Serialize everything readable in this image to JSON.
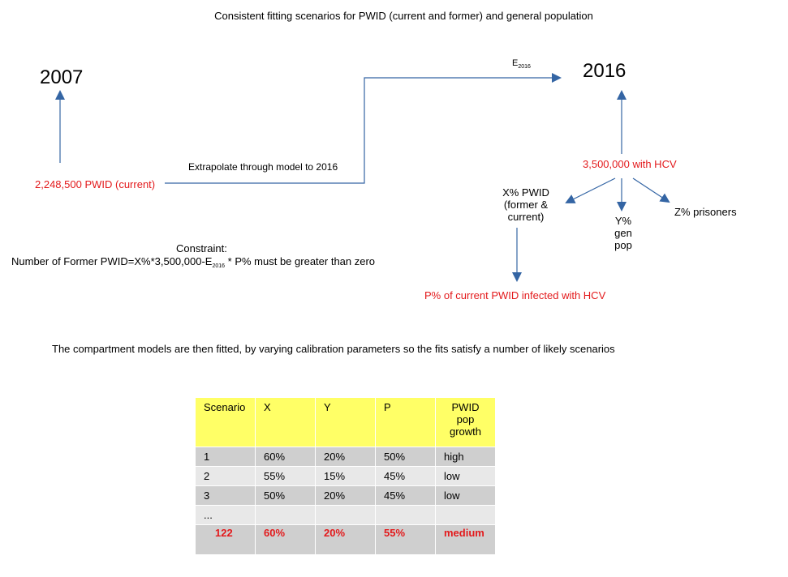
{
  "title": "Consistent fitting scenarios for PWID (current and former) and general population",
  "year_start": "2007",
  "year_end": "2016",
  "pwid_current": "2,248,500 PWID (current)",
  "extrapolate_label": "Extrapolate through model to 2016",
  "e_label": "E",
  "e_sub": "2016",
  "hcv_total": "3,500,000 with HCV",
  "x_pwid_lines": [
    "X% PWID",
    "(former &",
    "current)"
  ],
  "y_gen_lines": [
    "Y%",
    "gen",
    "pop"
  ],
  "z_prisoners": "Z% prisoners",
  "p_current": "P% of current PWID infected with HCV",
  "constraint": {
    "heading": "Constraint:",
    "text_before": "Number of Former PWID=X%*3,500,000-E",
    "sub": "2016",
    "text_after": " * P% must be greater than zero"
  },
  "fitting_note": "The compartment models are then fitted, by varying calibration parameters so the fits satisfy a number of likely scenarios",
  "table": {
    "headers": [
      "Scenario",
      "X",
      "Y",
      "P",
      [
        "PWID",
        "pop",
        "growth"
      ]
    ],
    "rows": [
      [
        "1",
        "60%",
        "20%",
        "50%",
        "high"
      ],
      [
        "2",
        "55%",
        "15%",
        "45%",
        "low"
      ],
      [
        "3",
        "50%",
        "20%",
        "45%",
        "low"
      ],
      [
        "...",
        "",
        "",
        "",
        ""
      ],
      [
        "122",
        "60%",
        "20%",
        "55%",
        "medium"
      ]
    ]
  },
  "colors": {
    "arrow": "#3465a4",
    "highlight": "#e31a1c",
    "header_bg": "#ffff66",
    "row_dark": "#cfcfcf",
    "row_light": "#e8e8e8"
  }
}
